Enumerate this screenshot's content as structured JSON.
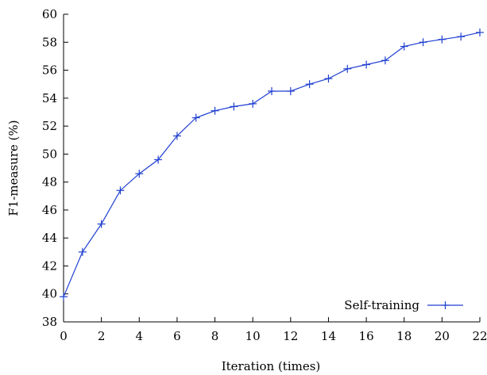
{
  "chart_data": {
    "type": "line",
    "title": "",
    "xlabel": "Iteration (times)",
    "ylabel": "F1-measure (%)",
    "xlim": [
      0,
      22
    ],
    "ylim": [
      38,
      60
    ],
    "xticks": [
      0,
      2,
      4,
      6,
      8,
      10,
      12,
      14,
      16,
      18,
      20,
      22
    ],
    "yticks": [
      38,
      40,
      42,
      44,
      46,
      48,
      50,
      52,
      54,
      56,
      58,
      60
    ],
    "grid": false,
    "legend_position": "bottom-right",
    "series": [
      {
        "name": "Self-training",
        "color": "#1f3fd1",
        "marker": "plus",
        "x": [
          0,
          1,
          2,
          3,
          4,
          5,
          6,
          7,
          8,
          9,
          10,
          11,
          12,
          13,
          14,
          15,
          16,
          17,
          18,
          19,
          20,
          21,
          22
        ],
        "y": [
          39.8,
          43.0,
          45.0,
          47.4,
          48.6,
          49.6,
          51.3,
          52.6,
          53.1,
          53.4,
          53.6,
          54.5,
          54.5,
          55.0,
          55.4,
          56.1,
          56.4,
          56.7,
          57.7,
          58.0,
          58.2,
          58.4,
          58.7
        ]
      }
    ]
  }
}
